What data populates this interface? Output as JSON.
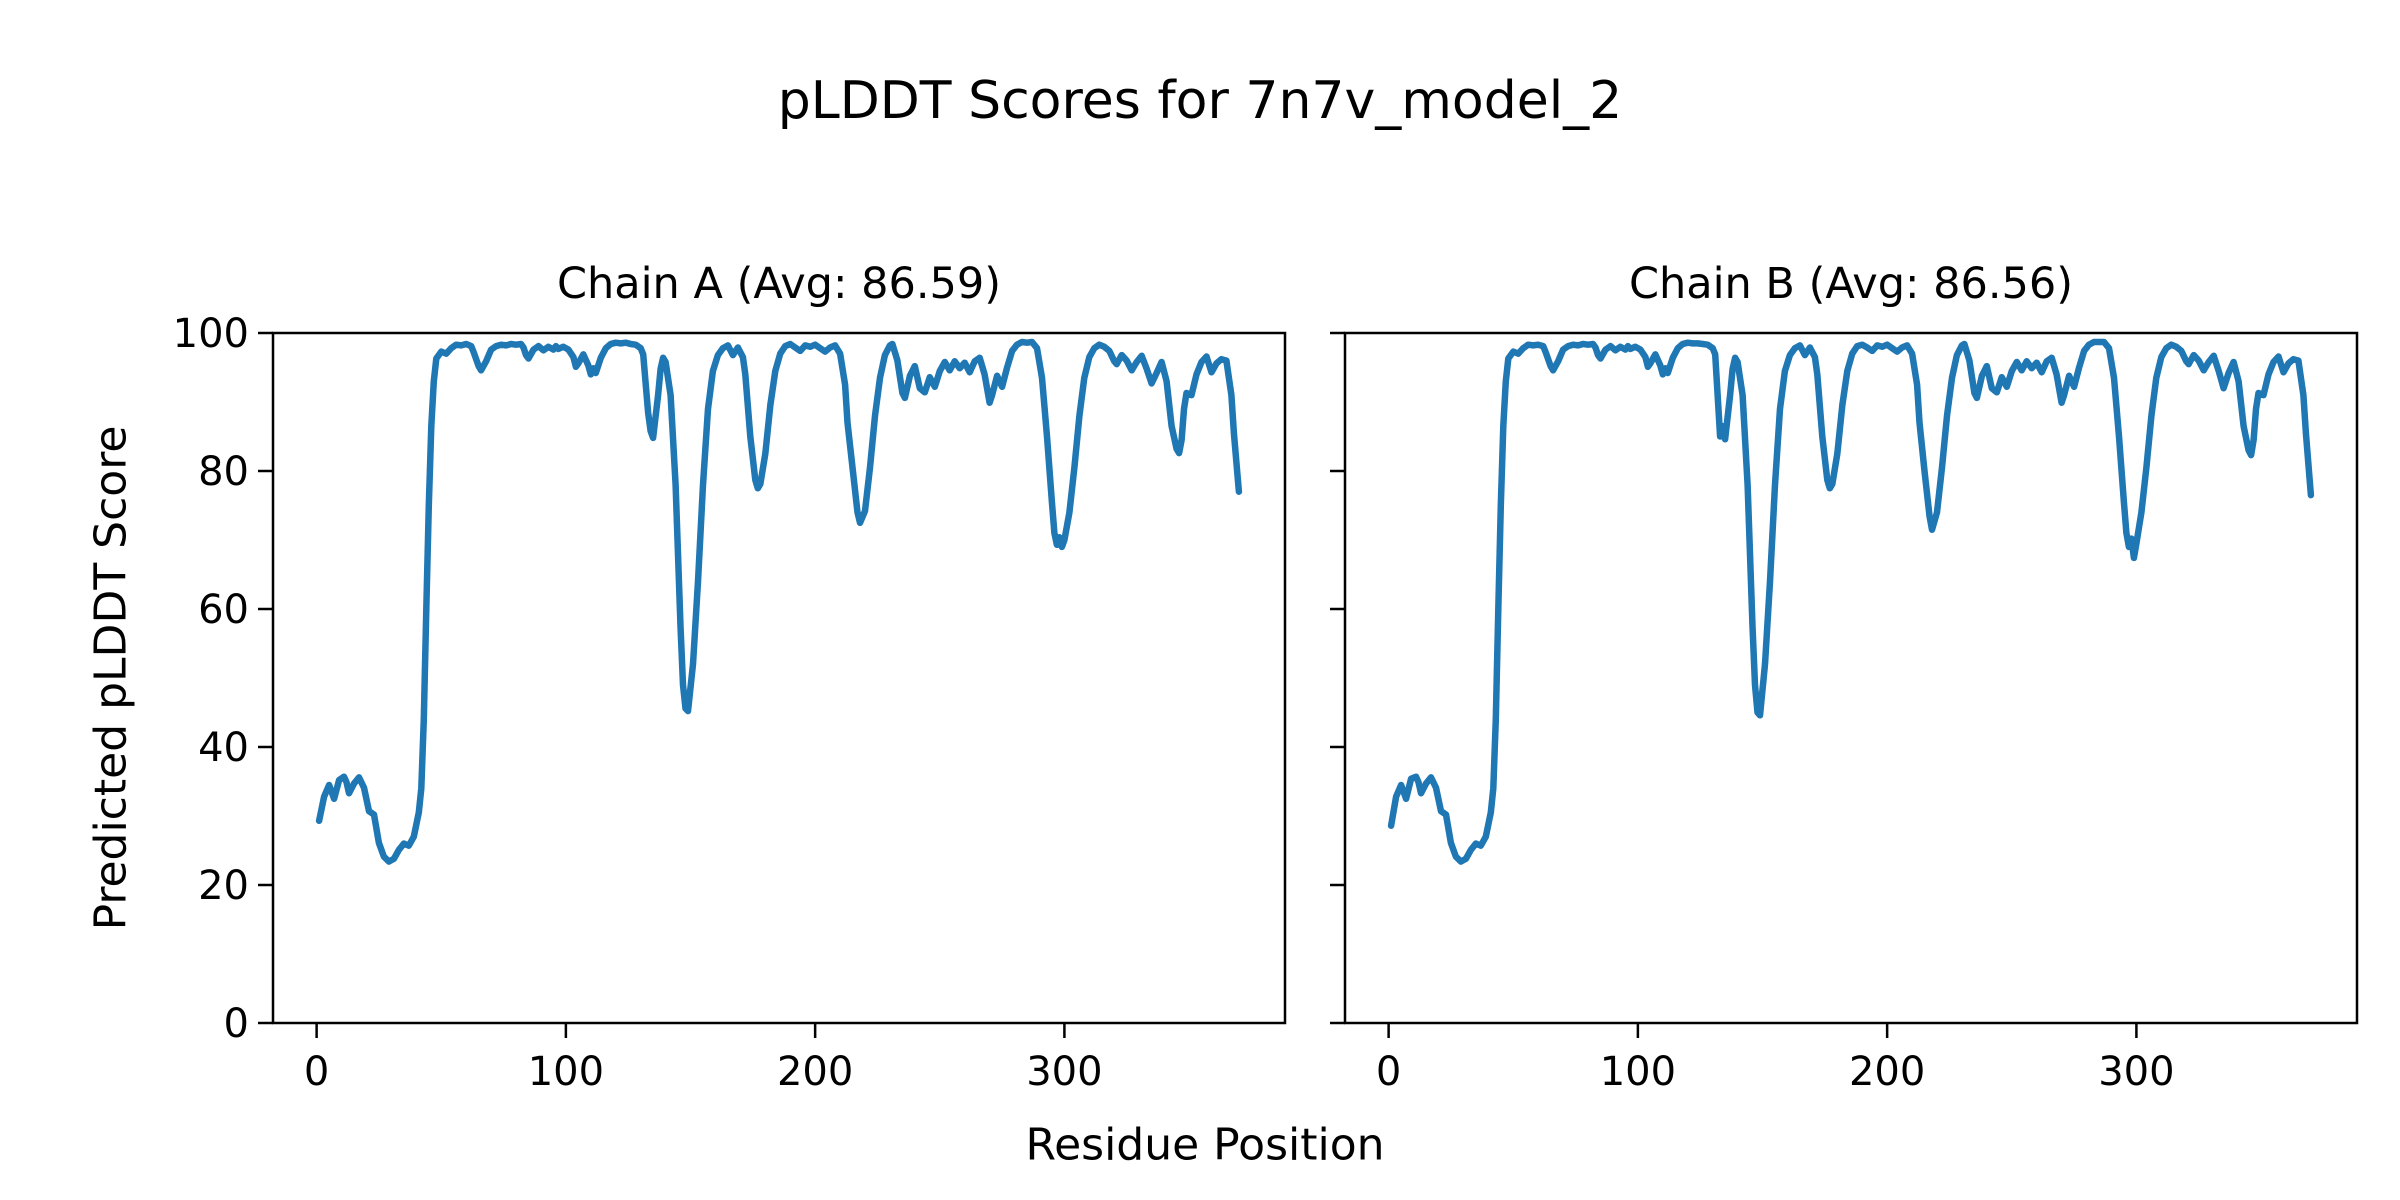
{
  "chart_data": {
    "type": "line",
    "suptitle": "pLDDT Scores for 7n7v_model_2",
    "xlabel": "Residue Position",
    "ylabel": "Predicted pLDDT Score",
    "line_color": "#1f77b4",
    "axis_color": "#000000",
    "background": "#ffffff",
    "grid": false,
    "legend": "none",
    "xlim": [
      -17.5,
      388.5
    ],
    "ylim": [
      0,
      100
    ],
    "xticks": [
      0,
      100,
      200,
      300
    ],
    "yticks": [
      0,
      20,
      40,
      60,
      80,
      100
    ],
    "x": [
      1,
      3,
      5,
      7,
      9,
      11,
      12,
      13,
      15,
      17,
      19,
      21,
      23,
      25,
      27,
      29,
      31,
      33,
      35,
      37,
      39,
      41,
      42,
      43,
      44,
      45,
      46,
      47,
      48,
      50,
      52,
      54,
      56,
      58,
      60,
      62,
      63,
      65,
      66,
      68,
      70,
      72,
      74,
      76,
      78,
      80,
      82,
      83,
      84,
      85,
      87,
      89,
      91,
      93,
      95,
      96,
      97,
      99,
      101,
      103,
      104,
      105,
      107,
      109,
      110,
      111,
      112,
      114,
      116,
      118,
      120,
      122,
      124,
      126,
      128,
      130,
      131,
      133,
      134,
      135,
      137,
      138,
      139,
      140,
      142,
      144,
      146,
      147,
      148,
      149,
      151,
      153,
      155,
      157,
      159,
      161,
      163,
      165,
      167,
      169,
      171,
      172,
      174,
      176,
      177,
      178,
      180,
      182,
      184,
      186,
      188,
      190,
      192,
      194,
      196,
      198,
      200,
      202,
      204,
      206,
      208,
      210,
      212,
      213,
      215,
      217,
      218,
      220,
      222,
      224,
      226,
      228,
      230,
      231,
      233,
      235,
      236,
      238,
      240,
      242,
      244,
      246,
      248,
      250,
      252,
      254,
      256,
      258,
      260,
      262,
      264,
      266,
      268,
      270,
      271,
      273,
      275,
      277,
      279,
      281,
      283,
      285,
      287,
      289,
      291,
      293,
      295,
      296,
      297,
      298,
      299,
      300,
      302,
      304,
      306,
      308,
      310,
      312,
      314,
      316,
      318,
      320,
      321,
      323,
      325,
      327,
      329,
      331,
      333,
      335,
      337,
      339,
      341,
      343,
      345,
      346,
      347,
      348,
      349,
      351,
      353,
      355,
      357,
      359,
      361,
      363,
      365,
      367,
      368,
      370
    ],
    "series": [
      {
        "name": "Chain A",
        "title": "Chain A (Avg: 86.59)",
        "avg": 86.59,
        "values": [
          29.3,
          32.8,
          34.5,
          32.5,
          35.2,
          35.7,
          34.9,
          33.3,
          34.7,
          35.6,
          34.1,
          30.7,
          30.2,
          26.1,
          24.1,
          23.4,
          23.8,
          25.1,
          26.0,
          25.7,
          27.0,
          30.5,
          34.0,
          44.0,
          60.0,
          75.0,
          86.5,
          93.0,
          96.3,
          97.3,
          97.0,
          97.8,
          98.3,
          98.2,
          98.4,
          98.1,
          97.2,
          95.2,
          94.6,
          95.9,
          97.6,
          98.1,
          98.3,
          98.2,
          98.4,
          98.3,
          98.4,
          97.9,
          96.8,
          96.3,
          97.6,
          98.1,
          97.5,
          98.0,
          97.6,
          98.1,
          97.7,
          98.0,
          97.6,
          96.5,
          95.1,
          95.6,
          96.9,
          95.3,
          94.0,
          94.9,
          94.2,
          96.4,
          97.8,
          98.4,
          98.6,
          98.5,
          98.6,
          98.4,
          98.3,
          97.8,
          96.9,
          88.5,
          85.8,
          84.8,
          91.0,
          94.8,
          96.4,
          95.8,
          91.0,
          78.0,
          57.5,
          49.0,
          45.6,
          45.2,
          52.0,
          64.0,
          78.0,
          89.0,
          94.5,
          96.8,
          97.8,
          98.2,
          96.8,
          97.9,
          96.5,
          94.0,
          85.0,
          78.7,
          77.5,
          78.1,
          82.5,
          89.5,
          94.5,
          97.0,
          98.1,
          98.4,
          97.9,
          97.4,
          98.2,
          98.0,
          98.3,
          97.8,
          97.3,
          97.9,
          98.2,
          97.0,
          92.5,
          87.0,
          80.5,
          74.0,
          72.5,
          74.2,
          80.5,
          88.0,
          93.5,
          96.8,
          98.2,
          98.4,
          96.0,
          91.3,
          90.6,
          93.8,
          95.2,
          92.0,
          91.4,
          93.6,
          92.2,
          94.5,
          95.8,
          94.6,
          95.9,
          94.9,
          95.7,
          94.3,
          95.9,
          96.4,
          94.0,
          89.9,
          91.0,
          93.8,
          92.2,
          95.0,
          97.4,
          98.3,
          98.7,
          98.6,
          98.7,
          97.8,
          93.5,
          85.0,
          75.5,
          71.0,
          69.3,
          70.4,
          69.0,
          70.0,
          74.0,
          80.5,
          88.0,
          93.5,
          96.5,
          97.8,
          98.3,
          98.0,
          97.4,
          95.9,
          95.5,
          96.8,
          96.0,
          94.6,
          95.8,
          96.7,
          94.8,
          92.7,
          94.2,
          95.8,
          93.0,
          86.5,
          83.2,
          82.6,
          84.5,
          89.0,
          91.3,
          91.0,
          94.0,
          95.8,
          96.6,
          94.3,
          95.6,
          96.2,
          96.0,
          91.0,
          85.5,
          77.0
        ]
      },
      {
        "name": "Chain B",
        "title": "Chain B (Avg: 86.56)",
        "avg": 86.56,
        "values": [
          28.6,
          32.8,
          34.5,
          32.5,
          35.4,
          35.7,
          34.9,
          33.3,
          34.7,
          35.6,
          34.1,
          30.7,
          30.2,
          26.1,
          24.1,
          23.4,
          23.8,
          25.1,
          26.0,
          25.7,
          27.0,
          30.5,
          34.0,
          44.0,
          60.0,
          75.0,
          86.5,
          93.0,
          96.3,
          97.3,
          97.0,
          97.8,
          98.3,
          98.2,
          98.3,
          98.1,
          97.2,
          95.2,
          94.6,
          95.9,
          97.6,
          98.1,
          98.3,
          98.2,
          98.4,
          98.3,
          98.4,
          97.9,
          96.8,
          96.3,
          97.6,
          98.1,
          97.5,
          98.0,
          97.6,
          98.1,
          97.7,
          98.0,
          97.6,
          96.5,
          95.1,
          95.6,
          96.9,
          95.3,
          94.0,
          94.9,
          94.2,
          96.4,
          97.8,
          98.4,
          98.6,
          98.5,
          98.5,
          98.4,
          98.3,
          97.8,
          96.9,
          85.0,
          86.5,
          84.6,
          91.0,
          94.8,
          96.4,
          95.8,
          91.0,
          78.0,
          57.5,
          49.0,
          45.0,
          44.6,
          52.0,
          64.0,
          78.0,
          89.0,
          94.5,
          96.8,
          97.8,
          98.2,
          96.8,
          97.9,
          96.5,
          94.0,
          85.0,
          78.7,
          77.5,
          78.1,
          82.5,
          89.5,
          94.5,
          97.0,
          98.1,
          98.3,
          97.9,
          97.4,
          98.2,
          98.0,
          98.3,
          97.8,
          97.3,
          97.9,
          98.2,
          97.0,
          92.5,
          87.0,
          80.0,
          73.5,
          71.5,
          74.0,
          80.5,
          88.0,
          93.5,
          96.8,
          98.2,
          98.4,
          96.0,
          91.3,
          90.6,
          93.8,
          95.2,
          92.0,
          91.4,
          93.6,
          92.2,
          94.5,
          95.8,
          94.6,
          95.9,
          94.9,
          95.7,
          94.3,
          95.9,
          96.4,
          94.0,
          89.9,
          91.0,
          93.8,
          92.2,
          95.0,
          97.4,
          98.3,
          98.7,
          98.7,
          98.7,
          97.8,
          93.5,
          85.0,
          75.5,
          71.0,
          69.0,
          70.2,
          67.4,
          69.5,
          74.0,
          80.5,
          88.0,
          93.5,
          96.5,
          97.8,
          98.3,
          98.0,
          97.4,
          95.9,
          95.5,
          96.8,
          96.0,
          94.6,
          95.8,
          96.7,
          94.5,
          92.0,
          94.2,
          95.8,
          93.0,
          86.5,
          83.0,
          82.3,
          84.5,
          89.0,
          91.3,
          91.0,
          94.0,
          95.8,
          96.6,
          94.3,
          95.6,
          96.2,
          96.0,
          91.0,
          85.5,
          76.5
        ]
      }
    ]
  }
}
